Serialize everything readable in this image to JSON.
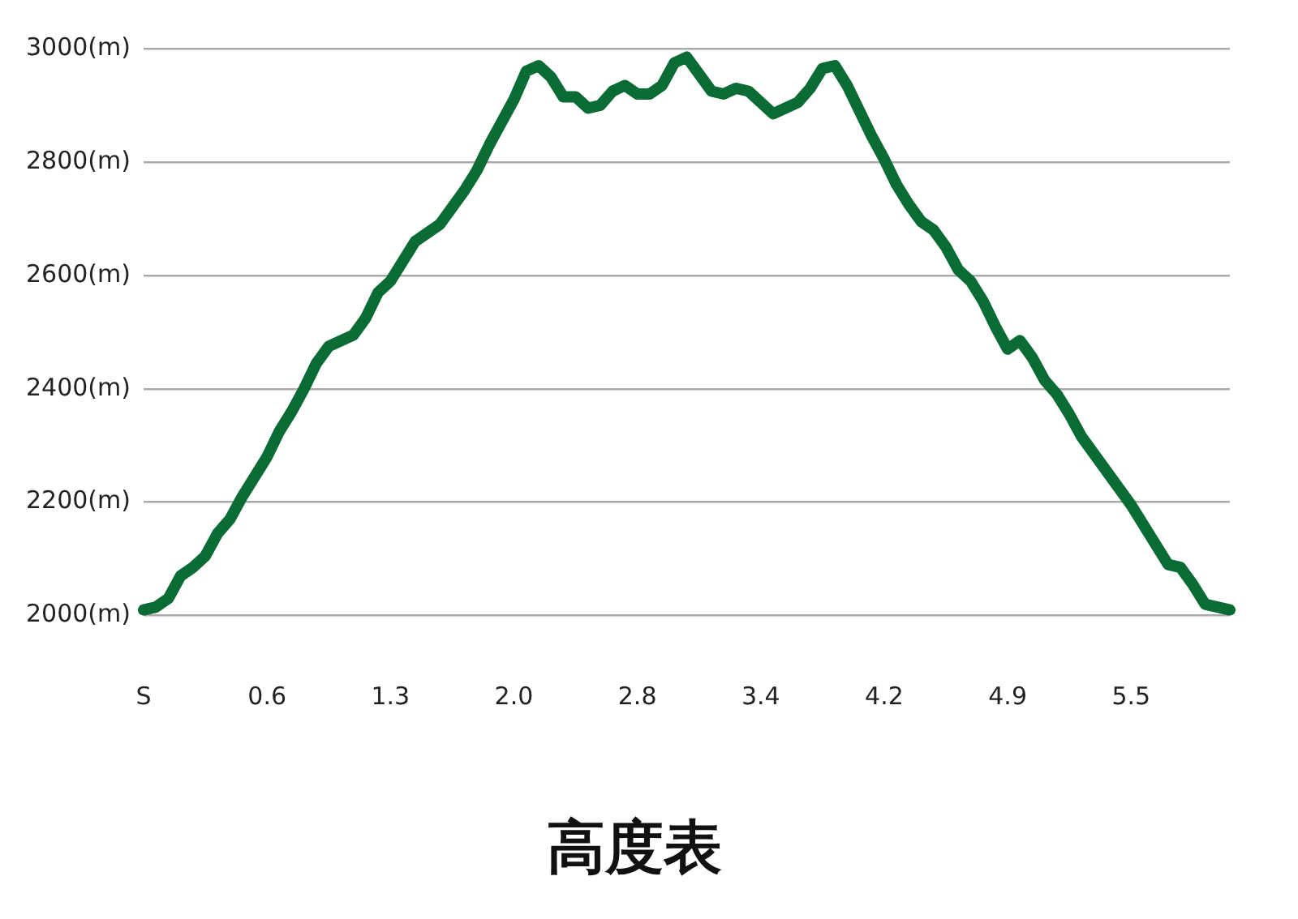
{
  "chart_data": {
    "type": "line",
    "title": "高度表",
    "categories": [
      "S",
      null,
      null,
      null,
      null,
      null,
      null,
      null,
      null,
      null,
      "0.6",
      null,
      null,
      null,
      null,
      null,
      null,
      null,
      null,
      null,
      "1.3",
      null,
      null,
      null,
      null,
      null,
      null,
      null,
      null,
      null,
      "2.0",
      null,
      null,
      null,
      null,
      null,
      null,
      null,
      null,
      null,
      "2.8",
      null,
      null,
      null,
      null,
      null,
      null,
      null,
      null,
      null,
      "3.4",
      null,
      null,
      null,
      null,
      null,
      null,
      null,
      null,
      null,
      "4.2",
      null,
      null,
      null,
      null,
      null,
      null,
      null,
      null,
      null,
      "4.9",
      null,
      null,
      null,
      null,
      null,
      null,
      null,
      null,
      null,
      "5.5",
      null,
      null,
      null,
      null,
      null,
      null,
      null,
      null
    ],
    "series": [
      {
        "color": "#0b6b35",
        "values": [
          2010,
          2015,
          2030,
          2070,
          2085,
          2105,
          2145,
          2170,
          2210,
          2245,
          2280,
          2325,
          2360,
          2400,
          2445,
          2475,
          2485,
          2495,
          2525,
          2570,
          2590,
          2625,
          2660,
          2675,
          2690,
          2720,
          2750,
          2785,
          2830,
          2870,
          2910,
          2960,
          2970,
          2950,
          2915,
          2915,
          2895,
          2900,
          2925,
          2935,
          2920,
          2920,
          2935,
          2975,
          2985,
          2955,
          2925,
          2920,
          2930,
          2925,
          2905,
          2885,
          2895,
          2905,
          2930,
          2965,
          2970,
          2935,
          2890,
          2845,
          2805,
          2760,
          2725,
          2695,
          2680,
          2650,
          2610,
          2590,
          2555,
          2510,
          2470,
          2485,
          2455,
          2415,
          2390,
          2355,
          2315,
          2285,
          2255,
          2225,
          2195,
          2160,
          2125,
          2090,
          2085,
          2055,
          2020,
          2015,
          2010
        ]
      }
    ],
    "ylim": [
      2000,
      3000
    ],
    "yticks": [
      {
        "value": 2000,
        "label": "2000(m)"
      },
      {
        "value": 2200,
        "label": "2200(m)"
      },
      {
        "value": 2400,
        "label": "2400(m)"
      },
      {
        "value": 2600,
        "label": "2600(m)"
      },
      {
        "value": 2800,
        "label": "2800(m)"
      },
      {
        "value": 3000,
        "label": "3000(m)"
      }
    ],
    "grid": "y",
    "legend": false,
    "marker": "none",
    "line_style": "solid"
  }
}
